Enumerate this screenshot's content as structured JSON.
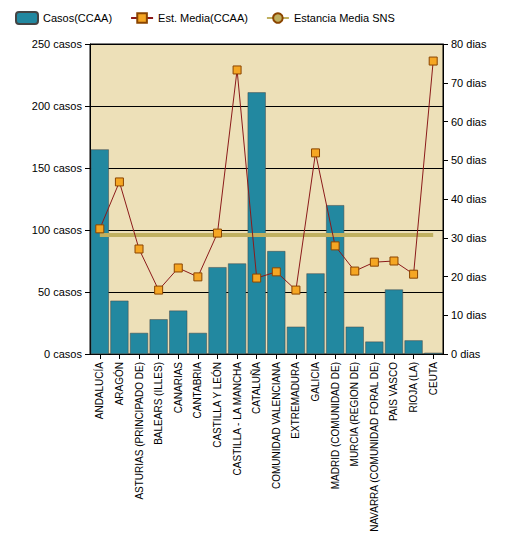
{
  "chart_data": {
    "type": "bar",
    "categories": [
      "ANDALUCÍA",
      "ARAGÓN",
      "ASTURIAS (PRINCIPADO DE)",
      "BALEARS (ILLES)",
      "CANARIAS",
      "CANTABRIA",
      "CASTILLA Y LEÓN",
      "CASTILLA - LA MANCHA",
      "CATALUÑA",
      "COMUNIDAD VALENCIANA",
      "EXTREMADURA",
      "GALICIA",
      "MADRID (COMUNIDAD DE)",
      "MURCIA (REGION DE)",
      "NAVARRA (COMUNIDAD FORAL DE)",
      "PAIS VASCO",
      "RIOJA (LA)",
      "CEUTA"
    ],
    "series": [
      {
        "name": "Casos(CCAA)",
        "type": "bar",
        "color": "#2288a0",
        "values": [
          165,
          43,
          17,
          28,
          35,
          17,
          70,
          73,
          211,
          83,
          22,
          65,
          120,
          22,
          10,
          52,
          11,
          1
        ]
      },
      {
        "name": "Est. Media(CCAA)",
        "type": "line",
        "axis": "y2",
        "color": "#8b1a1a",
        "marker": "square",
        "line_style": "solid",
        "values": [
          32.3,
          44.4,
          27.1,
          16.5,
          22.2,
          19.9,
          31.2,
          73.3,
          19.6,
          21.2,
          16.5,
          51.9,
          27.9,
          21.4,
          23.7,
          24,
          20.6,
          75.6
        ]
      },
      {
        "name": "Estancia Media SNS",
        "type": "line",
        "axis": "y2",
        "color": "#c0b060",
        "marker": "none",
        "line_style": "solid",
        "values": [
          30.7,
          30.7,
          30.7,
          30.7,
          30.7,
          30.7,
          30.7,
          30.7,
          30.7,
          30.7,
          30.7,
          30.7,
          30.7,
          30.7,
          30.7,
          30.7,
          30.7,
          30.7
        ]
      }
    ],
    "ylim": [
      0,
      250
    ],
    "yticks": [
      {
        "value": 0,
        "label": "0 casos"
      },
      {
        "value": 50,
        "label": "50 casos"
      },
      {
        "value": 100,
        "label": "100 casos"
      },
      {
        "value": 150,
        "label": "150 casos"
      },
      {
        "value": 200,
        "label": "200 casos"
      },
      {
        "value": 250,
        "label": "250 casos"
      }
    ],
    "y2lim": [
      0,
      80
    ],
    "y2ticks": [
      {
        "value": 0,
        "label": "0 dias"
      },
      {
        "value": 10,
        "label": "10 dias"
      },
      {
        "value": 20,
        "label": "20 dias"
      },
      {
        "value": 30,
        "label": "30 dias"
      },
      {
        "value": 40,
        "label": "40 dias"
      },
      {
        "value": 50,
        "label": "50 dias"
      },
      {
        "value": 60,
        "label": "60 dias"
      },
      {
        "value": 70,
        "label": "70 dias"
      },
      {
        "value": 80,
        "label": "80 dias"
      }
    ],
    "grid": true,
    "legend": "top"
  }
}
